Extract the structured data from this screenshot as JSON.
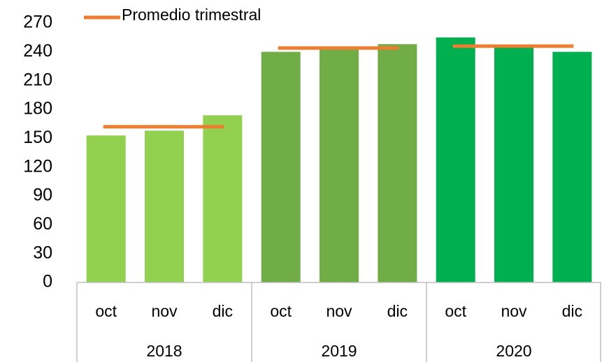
{
  "chart_data": {
    "type": "bar",
    "categories": [
      "oct",
      "nov",
      "dic",
      "oct",
      "nov",
      "dic",
      "oct",
      "nov",
      "dic"
    ],
    "values": [
      153,
      158,
      174,
      240,
      245,
      248,
      255,
      245,
      240
    ],
    "groups": [
      "2018",
      "2019",
      "2020"
    ],
    "group_colors": [
      "#92d050",
      "#70ad47",
      "#00b050"
    ],
    "average": {
      "name": "Promedio trimestral",
      "color": "#ed7d31",
      "values": [
        162,
        244,
        246
      ]
    },
    "ylim": [
      0,
      270
    ],
    "yticks": [
      0,
      30,
      60,
      90,
      120,
      150,
      180,
      210,
      240,
      270
    ],
    "grid": false,
    "legend": "top-left"
  }
}
